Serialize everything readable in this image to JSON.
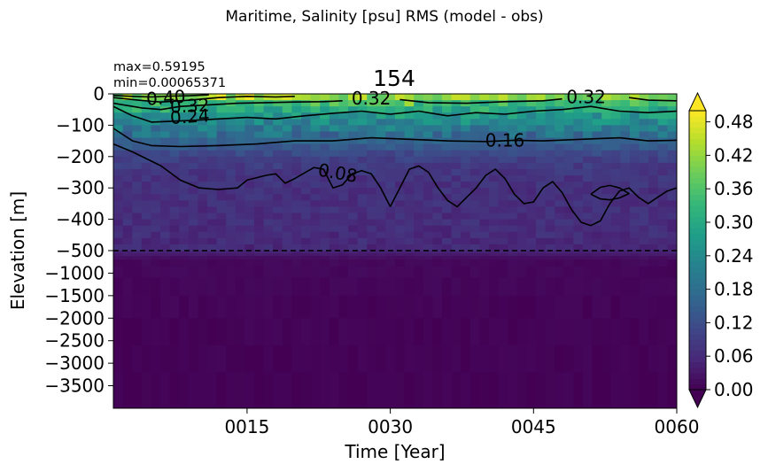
{
  "chart_data": {
    "type": "heatmap",
    "suptitle": "Maritime, Salinity [psu] RMS (model - obs)",
    "title": "154",
    "stats": {
      "max": "max=0.59195",
      "min": "min=0.00065371"
    },
    "xlabel": "Time [Year]",
    "ylabel": "Elevation [m]",
    "x_range": [
      1,
      60
    ],
    "x_ticks": [
      {
        "value": 15,
        "label": "0015"
      },
      {
        "value": 30,
        "label": "0030"
      },
      {
        "value": 45,
        "label": "0045"
      },
      {
        "value": 60,
        "label": "0060"
      }
    ],
    "y_upper_ticks": [
      {
        "value": 0,
        "label": "0"
      },
      {
        "value": -100,
        "label": "−100"
      },
      {
        "value": -200,
        "label": "−200"
      },
      {
        "value": -300,
        "label": "−300"
      },
      {
        "value": -400,
        "label": "−400"
      },
      {
        "value": -500,
        "label": "−500"
      }
    ],
    "y_lower_ticks": [
      {
        "value": -1000,
        "label": "−1000"
      },
      {
        "value": -1500,
        "label": "−1500"
      },
      {
        "value": -2000,
        "label": "−2000"
      },
      {
        "value": -2500,
        "label": "−2500"
      },
      {
        "value": -3000,
        "label": "−3000"
      },
      {
        "value": -3500,
        "label": "−3500"
      }
    ],
    "upper_range": [
      -500,
      0
    ],
    "lower_range": [
      -4000,
      -500
    ],
    "split_depth": -500,
    "colorbar": {
      "vmin": 0,
      "vmax": 0.5,
      "extend": "both",
      "colormap": "viridis",
      "ticks": [
        {
          "value": 0.0,
          "label": "0.00"
        },
        {
          "value": 0.06,
          "label": "0.06"
        },
        {
          "value": 0.12,
          "label": "0.12"
        },
        {
          "value": 0.18,
          "label": "0.18"
        },
        {
          "value": 0.24,
          "label": "0.24"
        },
        {
          "value": 0.3,
          "label": "0.30"
        },
        {
          "value": 0.36,
          "label": "0.36"
        },
        {
          "value": 0.42,
          "label": "0.42"
        },
        {
          "value": 0.48,
          "label": "0.48"
        }
      ]
    },
    "depth_profile": [
      {
        "depth": 5,
        "value": 0.44
      },
      {
        "depth": 15,
        "value": 0.38
      },
      {
        "depth": 30,
        "value": 0.34
      },
      {
        "depth": 50,
        "value": 0.3
      },
      {
        "depth": 75,
        "value": 0.26
      },
      {
        "depth": 100,
        "value": 0.22
      },
      {
        "depth": 130,
        "value": 0.18
      },
      {
        "depth": 160,
        "value": 0.15
      },
      {
        "depth": 200,
        "value": 0.1
      },
      {
        "depth": 260,
        "value": 0.075
      },
      {
        "depth": 320,
        "value": 0.07
      },
      {
        "depth": 400,
        "value": 0.065
      },
      {
        "depth": 480,
        "value": 0.06
      },
      {
        "depth": 700,
        "value": 0.01
      },
      {
        "depth": 2000,
        "value": 0.004
      },
      {
        "depth": 4000,
        "value": 0.002
      }
    ],
    "contour_labels": [
      {
        "text": "0.40",
        "x": 6.5,
        "depth": 12,
        "angle": -4
      },
      {
        "text": "0.32",
        "x": 9.0,
        "depth": 38,
        "angle": -3
      },
      {
        "text": "0.24",
        "x": 9.0,
        "depth": 72,
        "angle": -4
      },
      {
        "text": "0.32",
        "x": 28.0,
        "depth": 14,
        "angle": 0
      },
      {
        "text": "0.32",
        "x": 50.5,
        "depth": 10,
        "angle": 0
      },
      {
        "text": "0.16",
        "x": 42.0,
        "depth": 148,
        "angle": 0
      },
      {
        "text": "0.08",
        "x": 24.5,
        "depth": 252,
        "angle": 10
      }
    ],
    "contours": [
      {
        "level": 0.4,
        "points": [
          [
            1,
            5
          ],
          [
            3,
            8
          ],
          [
            5,
            10
          ],
          [
            7,
            7
          ],
          [
            9,
            6
          ],
          [
            11,
            3
          ]
        ]
      },
      {
        "level": 0.36,
        "points": [
          [
            1,
            12
          ],
          [
            3,
            18
          ],
          [
            5,
            24
          ],
          [
            6,
            26
          ],
          [
            9,
            20
          ],
          [
            12,
            12
          ],
          [
            15,
            8
          ],
          [
            18,
            10
          ],
          [
            20,
            8
          ]
        ]
      },
      {
        "level": 0.32,
        "points": [
          [
            1,
            30
          ],
          [
            4,
            45
          ],
          [
            6,
            50
          ],
          [
            8,
            40
          ],
          [
            11,
            35
          ],
          [
            14,
            30
          ],
          [
            17,
            28
          ],
          [
            20,
            26
          ],
          [
            23,
            25
          ],
          [
            25,
            22
          ]
        ]
      },
      {
        "level": 0.32,
        "points": [
          [
            31,
            18
          ],
          [
            34,
            28
          ],
          [
            38,
            30
          ],
          [
            42,
            25
          ],
          [
            46,
            22
          ],
          [
            48,
            16
          ]
        ]
      },
      {
        "level": 0.32,
        "points": [
          [
            55,
            12
          ],
          [
            57,
            20
          ],
          [
            60,
            22
          ]
        ]
      },
      {
        "level": 0.24,
        "points": [
          [
            1,
            40
          ],
          [
            3,
            70
          ],
          [
            5,
            90
          ],
          [
            9,
            85
          ],
          [
            12,
            80
          ],
          [
            15,
            75
          ],
          [
            18,
            80
          ],
          [
            21,
            70
          ],
          [
            24,
            62
          ],
          [
            27,
            55
          ],
          [
            30,
            65
          ],
          [
            33,
            55
          ],
          [
            36,
            70
          ],
          [
            39,
            60
          ],
          [
            42,
            65
          ],
          [
            45,
            55
          ],
          [
            48,
            50
          ],
          [
            51,
            40
          ],
          [
            54,
            55
          ],
          [
            57,
            60
          ],
          [
            60,
            55
          ]
        ]
      },
      {
        "level": 0.16,
        "points": [
          [
            1,
            110
          ],
          [
            2,
            130
          ],
          [
            3,
            150
          ],
          [
            5,
            165
          ],
          [
            8,
            168
          ],
          [
            12,
            165
          ],
          [
            16,
            160
          ],
          [
            20,
            150
          ],
          [
            24,
            150
          ],
          [
            28,
            140
          ],
          [
            32,
            145
          ],
          [
            36,
            150
          ],
          [
            40,
            152
          ],
          [
            43,
            148
          ],
          [
            46,
            150
          ],
          [
            50,
            145
          ],
          [
            54,
            140
          ],
          [
            57,
            150
          ],
          [
            60,
            148
          ]
        ]
      },
      {
        "level": 0.08,
        "points": [
          [
            1,
            160
          ],
          [
            3,
            185
          ],
          [
            6,
            230
          ],
          [
            8,
            275
          ],
          [
            10,
            300
          ],
          [
            12,
            305
          ],
          [
            14,
            300
          ],
          [
            15,
            275
          ],
          [
            17,
            260
          ],
          [
            18,
            255
          ],
          [
            19,
            285
          ],
          [
            20,
            270
          ],
          [
            22,
            235
          ],
          [
            23,
            240
          ],
          [
            24,
            300
          ],
          [
            25,
            290
          ],
          [
            26,
            255
          ],
          [
            27,
            245
          ],
          [
            28,
            255
          ],
          [
            29,
            300
          ],
          [
            30,
            360
          ]
        ]
      },
      {
        "level": 0.08,
        "points": [
          [
            30,
            360
          ],
          [
            31,
            300
          ],
          [
            32,
            240
          ],
          [
            33,
            230
          ],
          [
            34,
            250
          ],
          [
            35,
            300
          ],
          [
            36,
            340
          ],
          [
            37,
            360
          ],
          [
            38,
            330
          ],
          [
            39,
            300
          ],
          [
            40,
            260
          ],
          [
            41,
            240
          ],
          [
            42,
            270
          ],
          [
            43,
            320
          ],
          [
            44,
            350
          ],
          [
            45,
            345
          ],
          [
            46,
            300
          ],
          [
            47,
            280
          ],
          [
            48,
            315
          ],
          [
            49,
            370
          ],
          [
            50,
            410
          ],
          [
            51,
            420
          ],
          [
            52,
            405
          ],
          [
            53,
            350
          ],
          [
            54,
            310
          ],
          [
            55,
            300
          ],
          [
            56,
            330
          ],
          [
            57,
            350
          ],
          [
            58,
            330
          ],
          [
            59,
            310
          ],
          [
            60,
            300
          ]
        ]
      },
      {
        "level": 0.08,
        "points": [
          [
            51,
            320
          ],
          [
            52,
            298
          ],
          [
            53,
            292
          ],
          [
            54,
            300
          ],
          [
            55,
            318
          ],
          [
            54,
            332
          ],
          [
            53,
            338
          ],
          [
            52,
            335
          ],
          [
            51,
            320
          ]
        ]
      }
    ],
    "styles": {
      "contour_color": "#000000",
      "split_line_color": "#000000",
      "background": "#ffffff"
    }
  }
}
